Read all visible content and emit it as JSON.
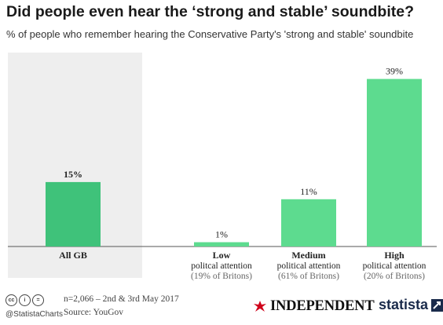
{
  "title": "Did people even hear the ‘strong and stable’ soundbite?",
  "subtitle": "% of people who remember hearing the Conservative Party's 'strong and stable' soundbite",
  "chart_data": {
    "type": "bar",
    "ylim": [
      0,
      40
    ],
    "categories": [
      {
        "label": "All GB",
        "sub1": "",
        "sub2": ""
      },
      {
        "label": "Low",
        "sub1": "politcal attention",
        "sub2": "(19% of Britons)"
      },
      {
        "label": "Medium",
        "sub1": "political attention",
        "sub2": "(61% of Britons)"
      },
      {
        "label": "High",
        "sub1": "political attention",
        "sub2": "(20% of Britons)"
      }
    ],
    "values": [
      15,
      1,
      11,
      39
    ],
    "value_labels": [
      "15%",
      "1%",
      "11%",
      "39%"
    ],
    "highlighted_category": "All GB",
    "bar_color": "#5ddb8f",
    "highlight_bar_color": "#3fc27a",
    "highlight_panel_color": "#eeeeee",
    "grid": false
  },
  "footer": {
    "source_line1": "n=2,066 – 2nd & 3rd May 2017",
    "source_line2": "Source: YouGov",
    "handle": "@StatistaCharts",
    "license_icons": [
      "cc-icon",
      "info-icon",
      "equals-icon"
    ],
    "independent_logo_text": "INDEPENDENT",
    "statista_logo_text": "statista"
  }
}
